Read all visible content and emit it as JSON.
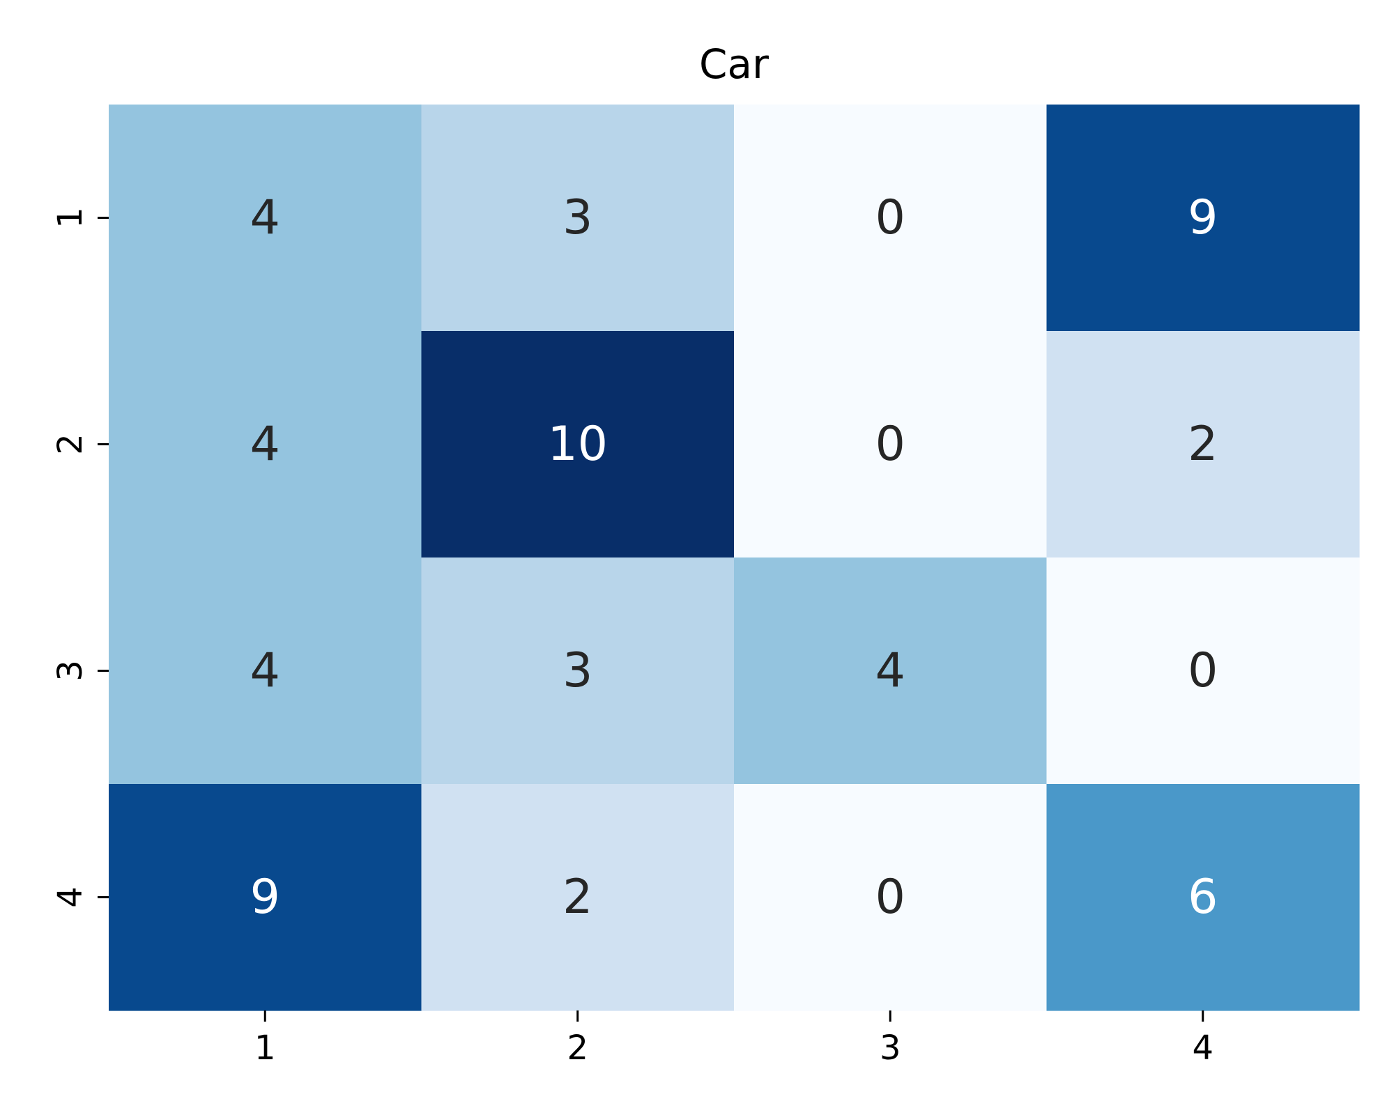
{
  "chart_data": {
    "type": "heatmap",
    "title": "Car",
    "xlabel": "",
    "ylabel": "",
    "x_categories": [
      "1",
      "2",
      "3",
      "4"
    ],
    "y_categories": [
      "1",
      "2",
      "3",
      "4"
    ],
    "values": [
      [
        4,
        3,
        0,
        9
      ],
      [
        4,
        10,
        0,
        2
      ],
      [
        4,
        3,
        4,
        0
      ],
      [
        9,
        2,
        0,
        6
      ]
    ],
    "value_range": [
      0,
      10
    ],
    "colormap": "Blues",
    "colorbar": false,
    "annotated": true,
    "colors": {
      "0": "#f7fbff",
      "2": "#d0e1f2",
      "3": "#b8d5ea",
      "4": "#94c4df",
      "6": "#4a98c9",
      "9": "#08498e",
      "10": "#082e69"
    },
    "label_colors": {
      "dark": "#262626",
      "light": "#ffffff"
    }
  }
}
